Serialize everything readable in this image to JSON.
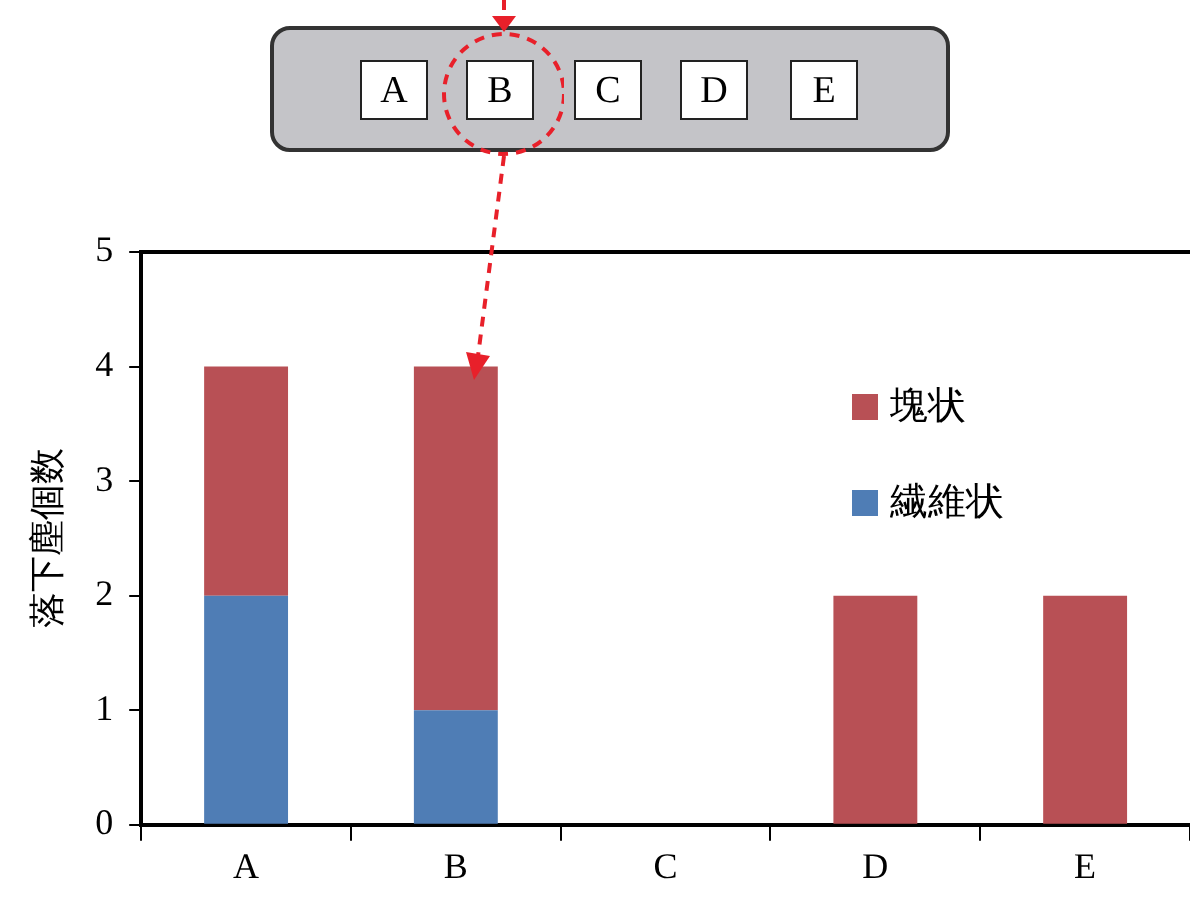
{
  "chart_data": {
    "type": "bar",
    "stacked": true,
    "ylabel": "落下塵個数",
    "categories": [
      "A",
      "B",
      "C",
      "D",
      "E"
    ],
    "series": [
      {
        "name": "繊維状",
        "color": "#4f7db5",
        "values": [
          2,
          1,
          0,
          0,
          0
        ]
      },
      {
        "name": "塊状",
        "color": "#b85055",
        "values": [
          2,
          3,
          0,
          2,
          2
        ]
      }
    ],
    "ylim": [
      0,
      5
    ],
    "yticks": [
      0,
      1,
      2,
      3,
      4,
      5
    ],
    "grid": false,
    "legend": "top right"
  }
}
